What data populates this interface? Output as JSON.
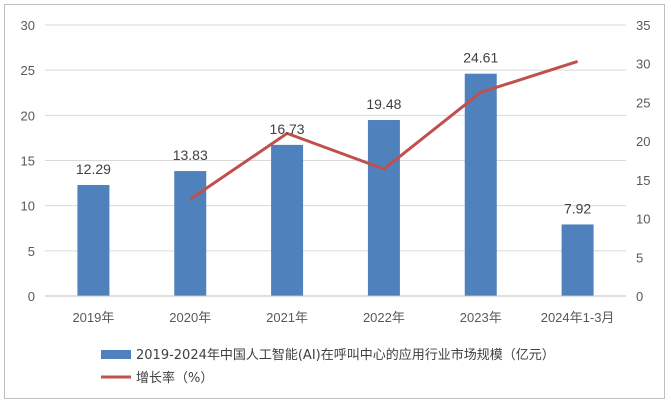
{
  "chart_data": {
    "type": "bar",
    "categories": [
      "2019年",
      "2020年",
      "2021年",
      "2022年",
      "2023年",
      "2024年1-3月"
    ],
    "series": [
      {
        "name": "2019-2024年中国人工智能(AI)在呼叫中心的应用行业市场规模（亿元）",
        "type": "bar",
        "axis": "left",
        "values": [
          12.29,
          13.83,
          16.73,
          19.48,
          24.61,
          7.92
        ],
        "labels": [
          "12.29",
          "13.83",
          "16.73",
          "19.48",
          "24.61",
          "7.92"
        ],
        "color": "#4f81bd"
      },
      {
        "name": "增长率（%）",
        "type": "line",
        "axis": "right",
        "values": [
          null,
          12.5,
          21.0,
          16.4,
          26.3,
          30.3
        ],
        "color": "#c0504d"
      }
    ],
    "y_left": {
      "min": 0,
      "max": 30,
      "ticks": [
        "0",
        "5",
        "10",
        "15",
        "20",
        "25",
        "30"
      ]
    },
    "y_right": {
      "min": 0,
      "max": 35,
      "ticks": [
        "0",
        "5",
        "10",
        "15",
        "20",
        "25",
        "30",
        "35"
      ]
    },
    "grid": true,
    "legend_position": "bottom-left"
  }
}
